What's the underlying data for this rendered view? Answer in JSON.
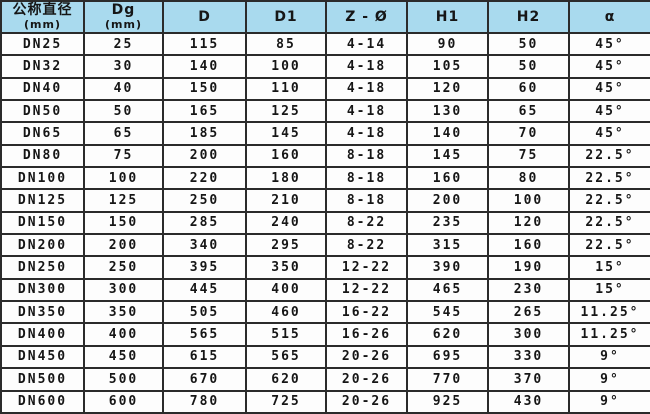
{
  "colors": {
    "header_bg": "#a9daee",
    "border": "#2b2b2b",
    "row_bg": "#fdfdfd",
    "text": "#161616"
  },
  "table": {
    "columns": [
      {
        "label": "公称直径",
        "sub": "(mm)"
      },
      {
        "label": "Dg",
        "sub": "(mm)"
      },
      {
        "label": "D",
        "sub": ""
      },
      {
        "label": "D1",
        "sub": ""
      },
      {
        "label": "Z - Ø",
        "sub": ""
      },
      {
        "label": "H1",
        "sub": ""
      },
      {
        "label": "H2",
        "sub": ""
      },
      {
        "label": "α",
        "sub": ""
      }
    ],
    "rows": [
      [
        "DN25",
        "25",
        "115",
        "85",
        "4-14",
        "90",
        "50",
        "45°"
      ],
      [
        "DN32",
        "30",
        "140",
        "100",
        "4-18",
        "105",
        "50",
        "45°"
      ],
      [
        "DN40",
        "40",
        "150",
        "110",
        "4-18",
        "120",
        "60",
        "45°"
      ],
      [
        "DN50",
        "50",
        "165",
        "125",
        "4-18",
        "130",
        "65",
        "45°"
      ],
      [
        "DN65",
        "65",
        "185",
        "145",
        "4-18",
        "140",
        "70",
        "45°"
      ],
      [
        "DN80",
        "75",
        "200",
        "160",
        "8-18",
        "145",
        "75",
        "22.5°"
      ],
      [
        "DN100",
        "100",
        "220",
        "180",
        "8-18",
        "160",
        "80",
        "22.5°"
      ],
      [
        "DN125",
        "125",
        "250",
        "210",
        "8-18",
        "200",
        "100",
        "22.5°"
      ],
      [
        "DN150",
        "150",
        "285",
        "240",
        "8-22",
        "235",
        "120",
        "22.5°"
      ],
      [
        "DN200",
        "200",
        "340",
        "295",
        "8-22",
        "315",
        "160",
        "22.5°"
      ],
      [
        "DN250",
        "250",
        "395",
        "350",
        "12-22",
        "390",
        "190",
        "15°"
      ],
      [
        "DN300",
        "300",
        "445",
        "400",
        "12-22",
        "465",
        "230",
        "15°"
      ],
      [
        "DN350",
        "350",
        "505",
        "460",
        "16-22",
        "545",
        "265",
        "11.25°"
      ],
      [
        "DN400",
        "400",
        "565",
        "515",
        "16-26",
        "620",
        "300",
        "11.25°"
      ],
      [
        "DN450",
        "450",
        "615",
        "565",
        "20-26",
        "695",
        "330",
        "9°"
      ],
      [
        "DN500",
        "500",
        "670",
        "620",
        "20-26",
        "770",
        "370",
        "9°"
      ],
      [
        "DN600",
        "600",
        "780",
        "725",
        "20-26",
        "925",
        "430",
        "9°"
      ]
    ]
  }
}
